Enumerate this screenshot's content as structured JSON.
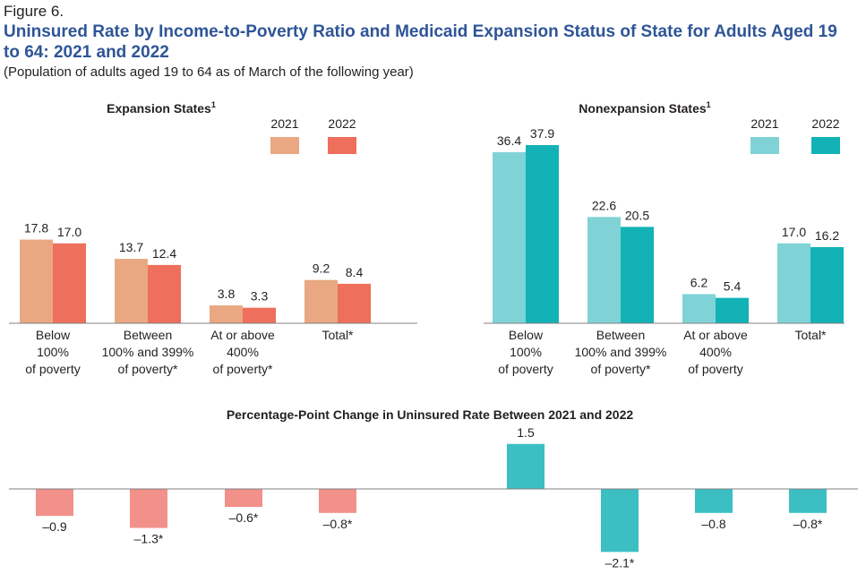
{
  "figure_label": "Figure 6.",
  "title": "Uninsured Rate by Income-to-Poverty Ratio and Medicaid Expansion Status of State for Adults Aged 19 to 64: 2021 and 2022",
  "subtitle": "(Population of adults aged 19 to 64 as of March of the following year)",
  "colors": {
    "expansion_2021": "#e9a882",
    "expansion_2022": "#ee6f5c",
    "nonexpansion_2021": "#7fd3d6",
    "nonexpansion_2022": "#12b2b6",
    "expansion_change": "#f2908a",
    "nonexpansion_change": "#3bbfc3"
  },
  "chart_data": [
    {
      "type": "bar",
      "title": "Expansion States",
      "title_superscript": "1",
      "legend_position": "top-right",
      "categories": [
        "Below 100% of poverty",
        "Between 100% and 399% of poverty*",
        "At or above 400% of poverty*",
        "Total*"
      ],
      "category_lines": [
        [
          "Below",
          "100%",
          "of poverty"
        ],
        [
          "Between",
          "100% and 399%",
          "of poverty*"
        ],
        [
          "At or above",
          "400%",
          "of poverty*"
        ],
        [
          "Total*"
        ]
      ],
      "series": [
        {
          "name": "2021",
          "values": [
            17.8,
            13.7,
            3.8,
            9.2
          ],
          "labels": [
            "17.8",
            "13.7",
            "3.8",
            "9.2"
          ]
        },
        {
          "name": "2022",
          "values": [
            17.0,
            12.4,
            3.3,
            8.4
          ],
          "labels": [
            "17.0",
            "12.4",
            "3.3",
            "8.4"
          ]
        }
      ],
      "ylim": [
        0,
        40
      ]
    },
    {
      "type": "bar",
      "title": "Nonexpansion States",
      "title_superscript": "1",
      "legend_position": "top-right",
      "categories": [
        "Below 100% of poverty",
        "Between 100% and 399% of poverty*",
        "At or above 400% of poverty",
        "Total*"
      ],
      "category_lines": [
        [
          "Below",
          "100%",
          "of poverty"
        ],
        [
          "Between",
          "100% and 399%",
          "of poverty*"
        ],
        [
          "At or above",
          "400%",
          "of poverty"
        ],
        [
          "Total*"
        ]
      ],
      "series": [
        {
          "name": "2021",
          "values": [
            36.4,
            22.6,
            6.2,
            17.0
          ],
          "labels": [
            "36.4",
            "22.6",
            "6.2",
            "17.0"
          ]
        },
        {
          "name": "2022",
          "values": [
            37.9,
            20.5,
            5.4,
            16.2
          ],
          "labels": [
            "37.9",
            "20.5",
            "5.4",
            "16.2"
          ]
        }
      ],
      "ylim": [
        0,
        40
      ]
    },
    {
      "type": "bar",
      "title": "Percentage-Point Change in Uninsured Rate Between 2021 and 2022",
      "groups": [
        "Expansion States",
        "Nonexpansion States"
      ],
      "values": [
        -0.9,
        -1.3,
        -0.6,
        -0.8,
        1.5,
        -2.1,
        -0.8,
        -0.8
      ],
      "labels": [
        "–0.9",
        "–1.3*",
        "–0.6*",
        "–0.8*",
        "1.5",
        "–2.1*",
        "–0.8",
        "–0.8*"
      ],
      "ylim": [
        -2.1,
        1.5
      ]
    }
  ]
}
